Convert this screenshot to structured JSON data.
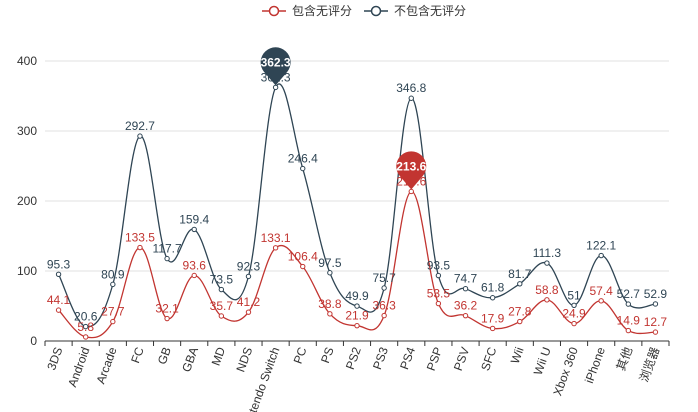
{
  "chart_data": {
    "type": "line",
    "categories": [
      "3DS",
      "Android",
      "Arcade",
      "FC",
      "GB",
      "GBA",
      "MD",
      "NDS",
      "Nintendo Switch",
      "PC",
      "PS",
      "PS2",
      "PS3",
      "PS4",
      "PSP",
      "PSV",
      "SFC",
      "Wii",
      "Wii U",
      "Xbox 360",
      "iPhone",
      "其他",
      "浏览器"
    ],
    "series": [
      {
        "name": "包含无评分",
        "color": "#c23531",
        "values": [
          44.1,
          5.8,
          27.7,
          133.5,
          32.1,
          93.6,
          35.7,
          41.2,
          133.1,
          106.4,
          38.8,
          21.9,
          36.3,
          213.6,
          53.5,
          36.2,
          17.9,
          27.8,
          58.8,
          24.9,
          57.4,
          14.9,
          12.7
        ],
        "max_marker": {
          "value": "213.6",
          "category": "PS4"
        }
      },
      {
        "name": "不包含无评分",
        "color": "#2f4554",
        "values": [
          95.3,
          20.6,
          80.9,
          292.7,
          117.7,
          159.4,
          73.5,
          92.3,
          362.3,
          246.4,
          97.5,
          49.9,
          75.7,
          346.8,
          93.5,
          74.7,
          61.8,
          81.7,
          111.3,
          51,
          122.1,
          52.7,
          52.9
        ],
        "max_marker": {
          "value": "362.3",
          "category": "Nintendo Switch"
        }
      }
    ],
    "ylim": [
      0,
      400
    ],
    "yticks": [
      "0",
      "100",
      "200",
      "300",
      "400"
    ],
    "grid": true,
    "legend": "top-center",
    "xlabel": "",
    "ylabel": ""
  }
}
